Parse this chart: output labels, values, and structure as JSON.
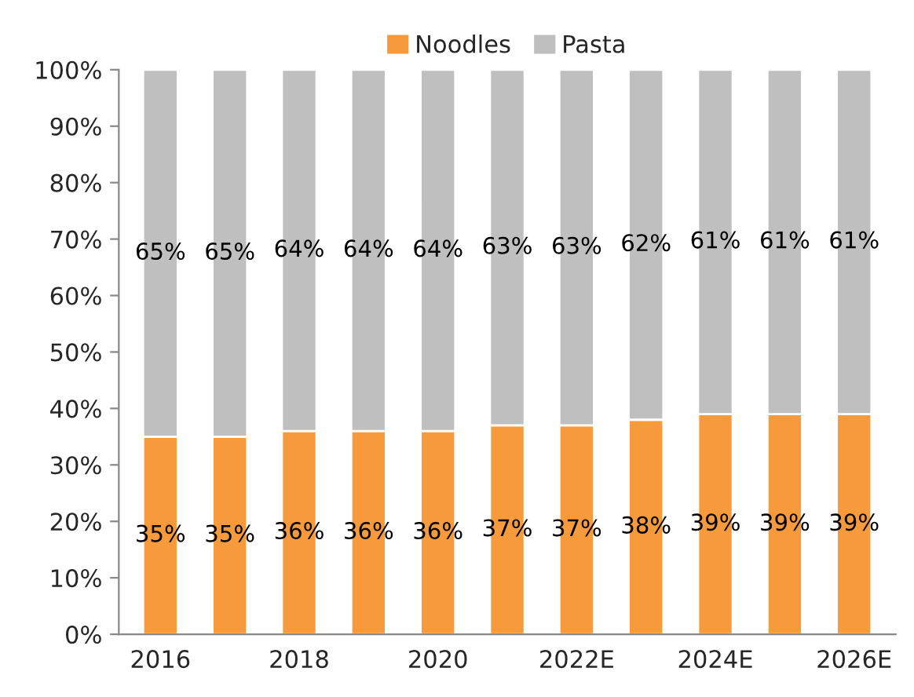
{
  "chart_data": {
    "type": "bar",
    "stacked": true,
    "categories": [
      "2016",
      null,
      "2018",
      null,
      "2020",
      null,
      "2022E",
      null,
      "2024E",
      null,
      "2026E"
    ],
    "series": [
      {
        "name": "Noodles",
        "color": "#f79a3b",
        "values": [
          35,
          35,
          36,
          36,
          36,
          37,
          37,
          38,
          39,
          39,
          39
        ],
        "value_labels": [
          "35%",
          "35%",
          "36%",
          "36%",
          "36%",
          "37%",
          "37%",
          "38%",
          "39%",
          "39%",
          "39%"
        ]
      },
      {
        "name": "Pasta",
        "color": "#bfbfbf",
        "values": [
          65,
          65,
          64,
          64,
          64,
          63,
          63,
          62,
          61,
          61,
          61
        ],
        "value_labels": [
          "65%",
          "65%",
          "64%",
          "64%",
          "64%",
          "63%",
          "63%",
          "62%",
          "61%",
          "61%",
          "61%"
        ]
      }
    ],
    "ylim": [
      0,
      100
    ],
    "yticks": [
      {
        "value": 0,
        "label": "0%"
      },
      {
        "value": 10,
        "label": "10%"
      },
      {
        "value": 20,
        "label": "20%"
      },
      {
        "value": 30,
        "label": "30%"
      },
      {
        "value": 40,
        "label": "40%"
      },
      {
        "value": 50,
        "label": "50%"
      },
      {
        "value": 60,
        "label": "60%"
      },
      {
        "value": 70,
        "label": "70%"
      },
      {
        "value": 80,
        "label": "80%"
      },
      {
        "value": 90,
        "label": "90%"
      },
      {
        "value": 100,
        "label": "100%"
      }
    ],
    "grid": false,
    "legend": "top"
  }
}
